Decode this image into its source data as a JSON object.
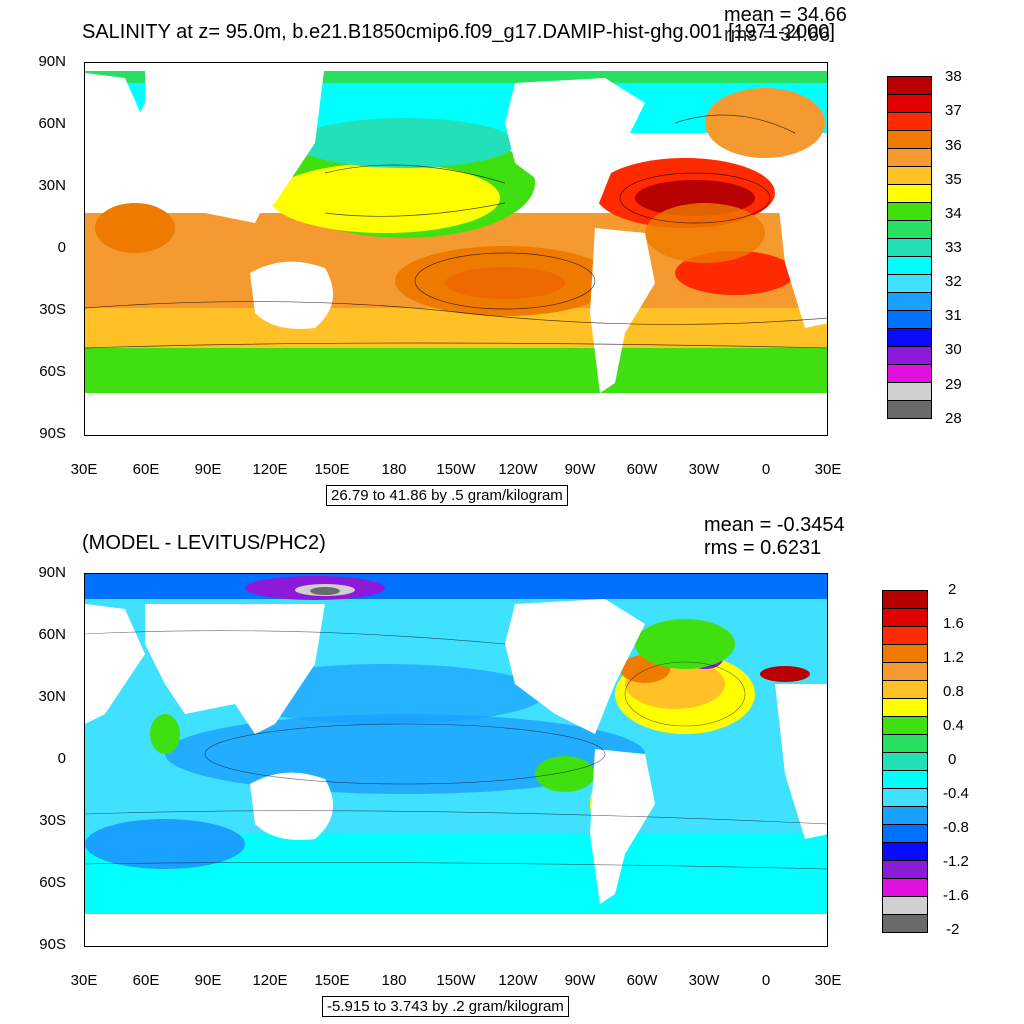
{
  "top_panel": {
    "title": "SALINITY at z=  95.0m, b.e21.B1850cmip6.f09_g17.DAMIP-hist-ghg.001 [1971-2000]",
    "mean": "mean = 34.66",
    "rms": "rms = 34.66",
    "info": "26.79 to 41.86 by .5 gram/kilogram",
    "legend_labels": [
      "38",
      "37",
      "36",
      "35",
      "34",
      "33",
      "32",
      "31",
      "30",
      "29",
      "28"
    ],
    "legend_colors": [
      "#b80000",
      "#e00000",
      "#ff2a00",
      "#ee7a00",
      "#f59a30",
      "#ffc125",
      "#ffff00",
      "#40e010",
      "#28e060",
      "#22e0b8",
      "#00ffff",
      "#40e0ff",
      "#1aa0ff",
      "#0070ff",
      "#0a0aff",
      "#8c1ad8",
      "#e010e0",
      "#d0d0d0",
      "#6a6a6a"
    ]
  },
  "bottom_panel": {
    "title": "(MODEL - LEVITUS/PHC2)",
    "mean": "mean = -0.3454",
    "rms": "rms = 0.6231",
    "info": "-5.915 to 3.743 by .2 gram/kilogram",
    "legend_labels": [
      "2",
      "1.6",
      "1.2",
      "0.8",
      "0.4",
      "0",
      "-0.4",
      "-0.8",
      "-1.2",
      "-1.6",
      "-2"
    ],
    "legend_colors": [
      "#b80000",
      "#e00000",
      "#ff2a00",
      "#ee7a00",
      "#f59a30",
      "#ffc125",
      "#ffff00",
      "#40e010",
      "#28e060",
      "#22e0b8",
      "#00ffff",
      "#40e0ff",
      "#1aa0ff",
      "#0070ff",
      "#0a0aff",
      "#8c1ad8",
      "#e010e0",
      "#d0d0d0",
      "#6a6a6a"
    ]
  },
  "axes": {
    "lat_labels": [
      "90N",
      "60N",
      "30N",
      "0",
      "30S",
      "60S",
      "90S"
    ],
    "lon_labels": [
      "30E",
      "60E",
      "90E",
      "120E",
      "150E",
      "180",
      "150W",
      "120W",
      "90W",
      "60W",
      "30W",
      "0",
      "30E"
    ]
  }
}
